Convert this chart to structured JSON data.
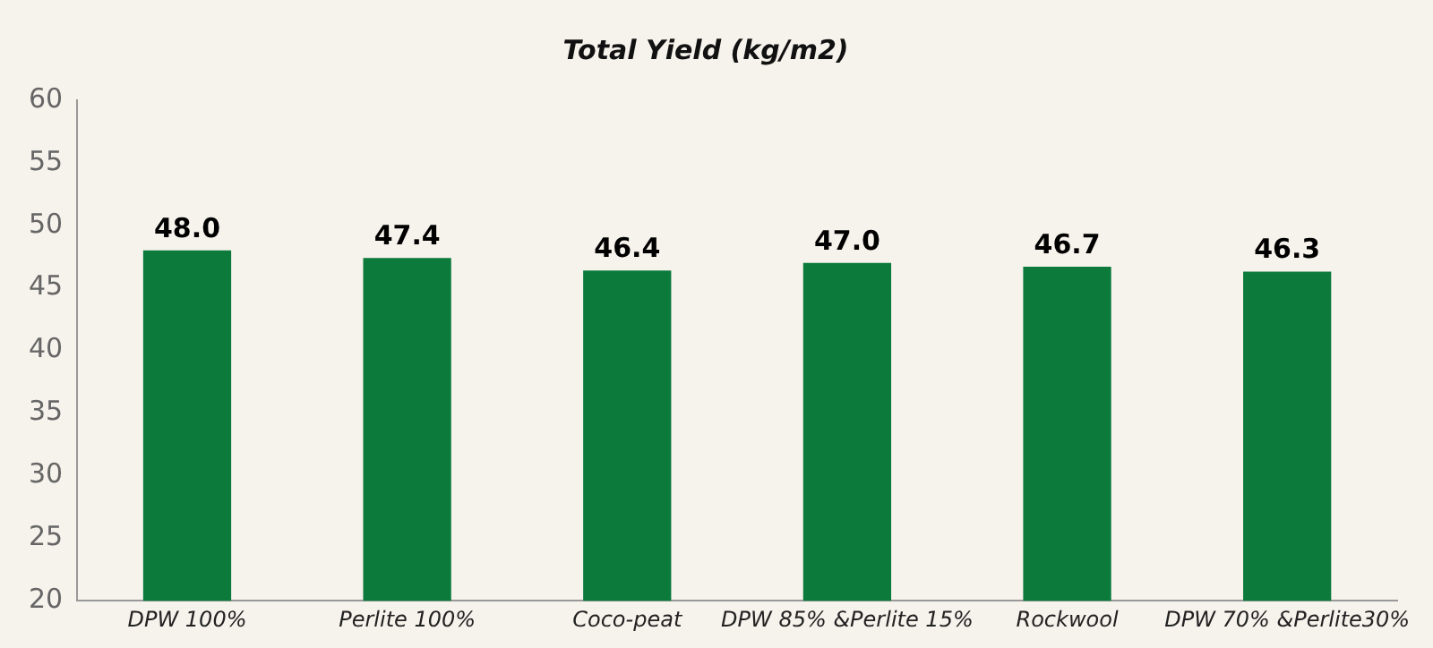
{
  "chart_data": {
    "type": "bar",
    "title": "Total Yield (kg/m2)",
    "categories": [
      "DPW 100%",
      "Perlite 100%",
      "Coco-peat",
      "DPW 85% &Perlite 15%",
      "Rockwool",
      "DPW 70% &Perlite30%"
    ],
    "values": [
      48.0,
      47.4,
      46.4,
      47.0,
      46.7,
      46.3
    ],
    "color": "#0b7a3b",
    "value_labels": [
      "48.0",
      "47.4",
      "46.4",
      "47.0",
      "46.7",
      "46.3"
    ],
    "ylim": [
      20,
      60
    ],
    "yticks": [
      20,
      25,
      30,
      35,
      40,
      45,
      50,
      55,
      60
    ],
    "grid": false,
    "legend": false
  }
}
